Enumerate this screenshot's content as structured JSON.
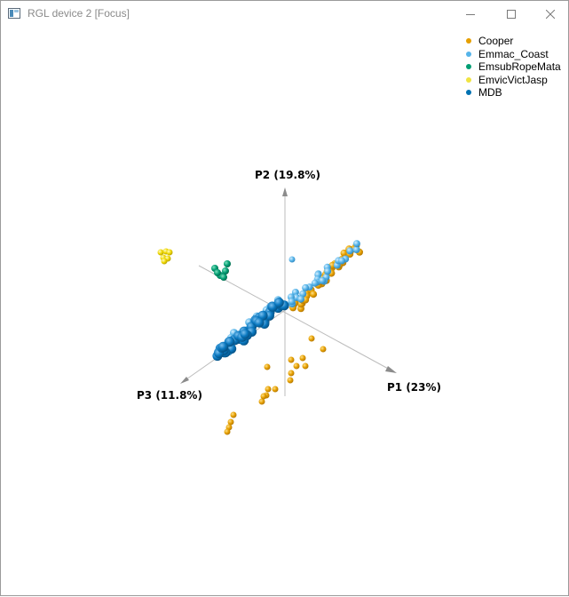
{
  "window": {
    "title": "RGL device 2 [Focus]",
    "controls": {
      "minimize_icon": "minimize-icon",
      "maximize_icon": "maximize-icon",
      "close_icon": "close-icon"
    }
  },
  "legend": {
    "items": [
      {
        "label": "Cooper",
        "color": "#E69F00"
      },
      {
        "label": "Emmac_Coast",
        "color": "#56B4E9"
      },
      {
        "label": "EmsubRopeMata",
        "color": "#009E73"
      },
      {
        "label": "EmvicVictJasp",
        "color": "#F0E442"
      },
      {
        "label": "MDB",
        "color": "#0072B2"
      }
    ]
  },
  "axes": {
    "p1_label": "P1 (23%)",
    "p2_label": "P2 (19.8%)",
    "p3_label": "P3 (11.8%)"
  }
}
